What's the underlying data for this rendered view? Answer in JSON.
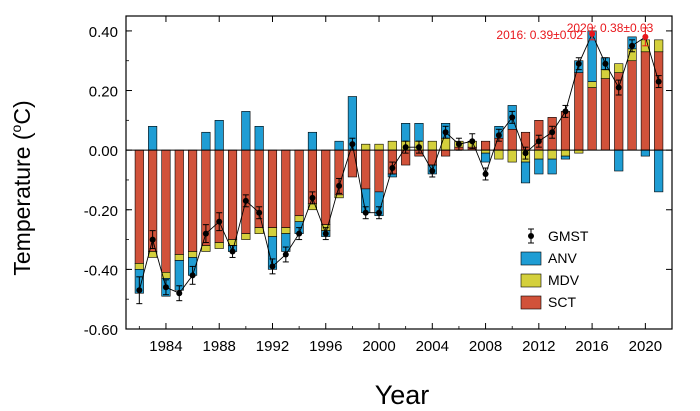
{
  "chart_data": {
    "type": "bar",
    "subtype": "stacked-bar-with-line",
    "xlabel": "Year",
    "ylabel_text": "Temperature (",
    "ylabel_sup": "o",
    "ylabel_unit": "C)",
    "ylim": [
      -0.6,
      0.45
    ],
    "xlim": [
      1981,
      2022
    ],
    "yticks": [
      -0.6,
      -0.4,
      -0.2,
      0.0,
      0.2,
      0.4
    ],
    "ytick_labels": [
      "-0.60",
      "-0.40",
      "-0.20",
      "0.00",
      "0.20",
      "0.40"
    ],
    "xticks": [
      1984,
      1988,
      1992,
      1996,
      2000,
      2004,
      2008,
      2012,
      2016,
      2020
    ],
    "xtick_labels": [
      "1984",
      "1988",
      "1992",
      "1996",
      "2000",
      "2004",
      "2008",
      "2012",
      "2016",
      "2020"
    ],
    "grid": false,
    "legend_position": "bottom-right",
    "years": [
      1982,
      1983,
      1984,
      1985,
      1986,
      1987,
      1988,
      1989,
      1990,
      1991,
      1992,
      1993,
      1994,
      1995,
      1996,
      1997,
      1998,
      1999,
      2000,
      2001,
      2002,
      2003,
      2004,
      2005,
      2006,
      2007,
      2008,
      2009,
      2010,
      2011,
      2012,
      2013,
      2014,
      2015,
      2016,
      2017,
      2018,
      2019,
      2020,
      2021
    ],
    "series": [
      {
        "name": "SCT",
        "color": "#d1523a",
        "values": [
          -0.38,
          -0.34,
          -0.41,
          -0.35,
          -0.34,
          -0.32,
          -0.31,
          -0.3,
          -0.28,
          -0.26,
          -0.26,
          -0.26,
          -0.22,
          -0.18,
          -0.25,
          -0.15,
          -0.09,
          -0.13,
          -0.14,
          -0.08,
          -0.05,
          -0.02,
          -0.05,
          -0.02,
          0.01,
          0.01,
          0.03,
          0.04,
          0.07,
          0.06,
          0.1,
          0.11,
          0.13,
          0.26,
          0.21,
          0.24,
          0.26,
          0.3,
          0.33,
          0.33
        ]
      },
      {
        "name": "MDV",
        "color": "#d4d03c",
        "values": [
          -0.02,
          -0.02,
          -0.02,
          -0.02,
          -0.02,
          -0.02,
          -0.02,
          -0.02,
          -0.02,
          -0.02,
          -0.03,
          -0.02,
          -0.02,
          -0.02,
          -0.02,
          -0.01,
          0.0,
          0.02,
          0.02,
          0.03,
          0.03,
          0.03,
          0.03,
          0.04,
          0.02,
          0.02,
          -0.01,
          -0.03,
          -0.04,
          -0.04,
          -0.03,
          -0.03,
          -0.02,
          -0.01,
          0.02,
          0.03,
          0.03,
          0.04,
          0.04,
          0.04
        ]
      },
      {
        "name": "ANV",
        "color": "#1f9dd4",
        "values": [
          -0.08,
          0.08,
          -0.06,
          -0.1,
          -0.06,
          0.06,
          0.1,
          -0.02,
          0.13,
          0.08,
          -0.11,
          -0.06,
          -0.04,
          0.06,
          -0.02,
          0.03,
          0.18,
          -0.08,
          -0.08,
          -0.01,
          0.06,
          0.06,
          -0.03,
          0.05,
          0.0,
          0.0,
          -0.03,
          0.04,
          0.08,
          -0.07,
          -0.05,
          -0.05,
          -0.01,
          0.04,
          0.17,
          0.04,
          -0.07,
          0.04,
          -0.02,
          -0.14
        ]
      },
      {
        "name": "GMST",
        "color": "#000000",
        "values": [
          -0.47,
          -0.3,
          -0.46,
          -0.48,
          -0.42,
          -0.28,
          -0.24,
          -0.34,
          -0.17,
          -0.21,
          -0.39,
          -0.35,
          -0.28,
          -0.16,
          -0.28,
          -0.12,
          0.02,
          -0.21,
          -0.21,
          -0.06,
          0.01,
          0.01,
          -0.07,
          0.06,
          0.02,
          0.03,
          -0.08,
          0.05,
          0.11,
          -0.01,
          0.03,
          0.06,
          0.13,
          0.29,
          0.39,
          0.29,
          0.21,
          0.35,
          0.38,
          0.23
        ],
        "errors": [
          0.045,
          0.03,
          0.025,
          0.025,
          0.03,
          0.03,
          0.03,
          0.02,
          0.02,
          0.02,
          0.025,
          0.025,
          0.02,
          0.02,
          0.02,
          0.025,
          0.02,
          0.02,
          0.02,
          0.02,
          0.02,
          0.02,
          0.02,
          0.02,
          0.02,
          0.025,
          0.02,
          0.02,
          0.02,
          0.02,
          0.02,
          0.02,
          0.02,
          0.02,
          0.02,
          0.02,
          0.025,
          0.02,
          0.03,
          0.02
        ]
      }
    ],
    "annotations": [
      {
        "text": "2016: 0.39±0.02",
        "year": 2016,
        "value": 0.39,
        "color": "#e8161b"
      },
      {
        "text": "2020: 0.38±0.03",
        "year": 2020,
        "value": 0.38,
        "color": "#e8161b"
      }
    ],
    "legend": [
      "GMST",
      "ANV",
      "MDV",
      "SCT"
    ]
  }
}
